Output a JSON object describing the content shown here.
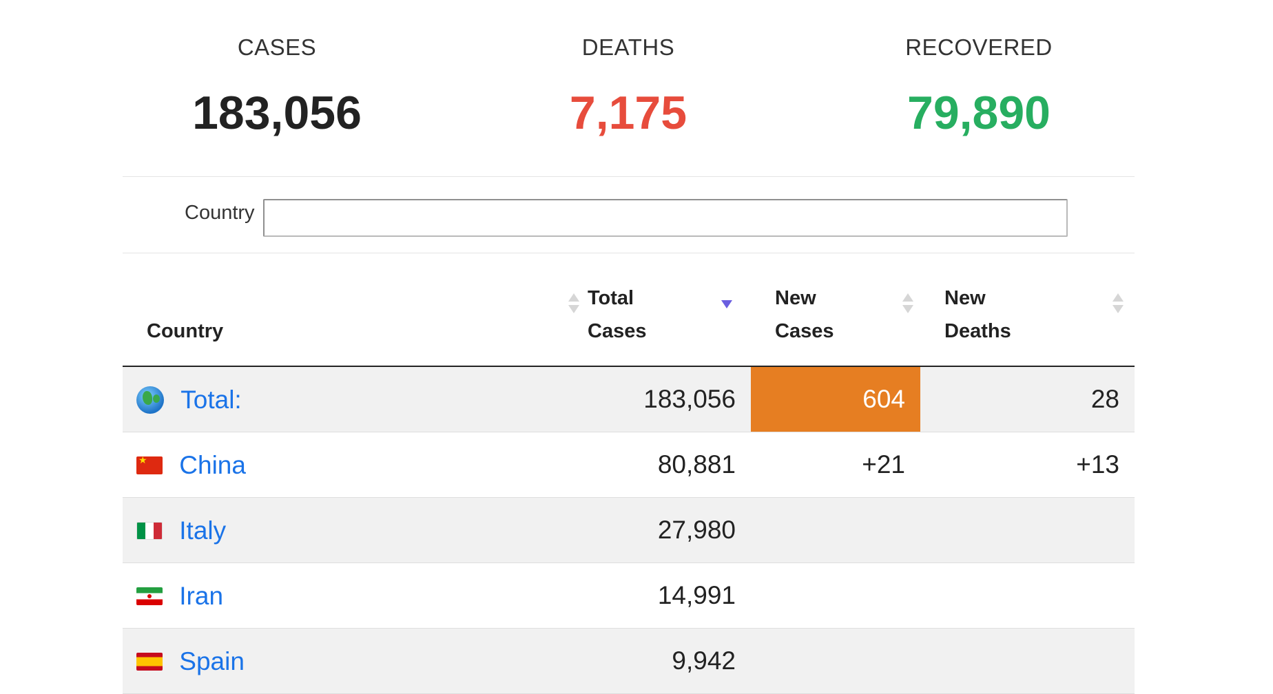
{
  "stats": {
    "cases": {
      "label": "CASES",
      "value": "183,056",
      "color": "#222222"
    },
    "deaths": {
      "label": "DEATHS",
      "value": "7,175",
      "color": "#e74c3c"
    },
    "recovered": {
      "label": "RECOVERED",
      "value": "79,890",
      "color": "#27ae60"
    }
  },
  "filter": {
    "label": "Country",
    "value": ""
  },
  "table": {
    "columns": {
      "country": "Country",
      "total_cases": "Total Cases",
      "new_cases": "New Cases",
      "new_deaths": "New Deaths"
    },
    "sorted_by": "total_cases",
    "sort_direction": "descending",
    "highlight_color": "#e67e22",
    "rows": [
      {
        "flag": "globe-icon",
        "country": "Total:",
        "total_cases": "183,056",
        "new_cases": "604",
        "new_deaths": "28"
      },
      {
        "flag": "china-flag-icon",
        "country": "China",
        "total_cases": "80,881",
        "new_cases": "+21",
        "new_deaths": "+13"
      },
      {
        "flag": "italy-flag-icon",
        "country": "Italy",
        "total_cases": "27,980",
        "new_cases": "",
        "new_deaths": ""
      },
      {
        "flag": "iran-flag-icon",
        "country": "Iran",
        "total_cases": "14,991",
        "new_cases": "",
        "new_deaths": ""
      },
      {
        "flag": "spain-flag-icon",
        "country": "Spain",
        "total_cases": "9,942",
        "new_cases": "",
        "new_deaths": ""
      }
    ]
  }
}
